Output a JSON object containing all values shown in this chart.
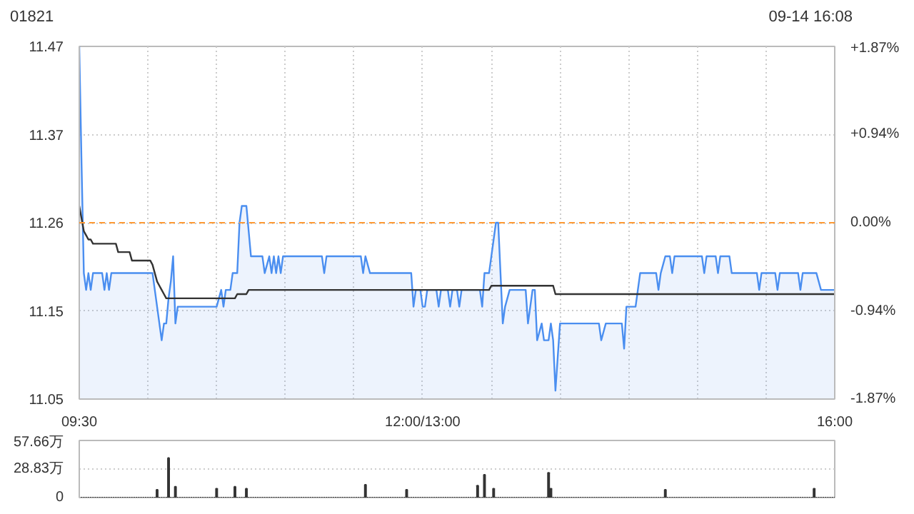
{
  "chart_data": [
    {
      "type": "line",
      "title": "01821",
      "annotations": [
        "09-14 16:08"
      ],
      "categories": [
        "09:30",
        null,
        null,
        null,
        null,
        null,
        null,
        null,
        null,
        null,
        null,
        null,
        null,
        null,
        null,
        null,
        null,
        null,
        null,
        null,
        null,
        null,
        null,
        null,
        null,
        null,
        null,
        null,
        null,
        null,
        null,
        null,
        null,
        null,
        null,
        null,
        null,
        null,
        null,
        null,
        null,
        null,
        null,
        null,
        null,
        null,
        null,
        null,
        null,
        null,
        null,
        null,
        null,
        null,
        null,
        null,
        null,
        null,
        null,
        null,
        null,
        null,
        null,
        null,
        null,
        null,
        null,
        null,
        null,
        null,
        null,
        null,
        null,
        null,
        null,
        null,
        null,
        null,
        null,
        null,
        null,
        null,
        null,
        null,
        null,
        null,
        null,
        null,
        null,
        null,
        null,
        null,
        null,
        null,
        null,
        null,
        null,
        null,
        null,
        null,
        null,
        null,
        null,
        null,
        null,
        null,
        null,
        null,
        null,
        null,
        null,
        null,
        null,
        null,
        null,
        null,
        null,
        null,
        null,
        null,
        null,
        null,
        null,
        null,
        null,
        null,
        null,
        null,
        null,
        null,
        null,
        null,
        null,
        null,
        null,
        null,
        null,
        null,
        null,
        null,
        null,
        null,
        null,
        null,
        null,
        null,
        null,
        null,
        null,
        null,
        "12:00/13:00",
        null,
        null,
        null,
        null,
        null,
        null,
        null,
        null,
        null,
        null,
        null,
        null,
        null,
        null,
        null,
        null,
        null,
        null,
        null,
        null,
        null,
        null,
        null,
        null,
        null,
        null,
        null,
        null,
        null,
        null,
        null,
        null,
        null,
        null,
        null,
        null,
        null,
        null,
        null,
        null,
        null,
        null,
        null,
        null,
        null,
        null,
        null,
        null,
        null,
        null,
        null,
        null,
        null,
        null,
        null,
        null,
        null,
        null,
        null,
        null,
        null,
        null,
        null,
        null,
        null,
        null,
        null,
        null,
        null,
        null,
        null,
        null,
        null,
        null,
        null,
        null,
        null,
        null,
        null,
        null,
        null,
        null,
        null,
        null,
        null,
        null,
        null,
        null,
        null,
        null,
        null,
        null,
        null,
        null,
        null,
        null,
        null,
        null,
        null,
        null,
        null,
        null,
        null,
        null,
        null,
        null,
        null,
        null,
        null,
        null,
        null,
        null,
        null,
        null,
        null,
        null,
        null,
        null,
        null,
        null,
        null,
        null,
        null,
        null,
        null,
        null,
        null,
        null,
        null,
        null,
        null,
        null,
        null,
        null,
        null,
        null,
        null,
        null,
        null,
        null,
        null,
        null,
        null,
        null,
        null,
        null,
        null,
        null,
        null,
        null,
        null,
        null,
        null,
        null,
        null,
        null,
        null,
        null,
        null,
        null,
        null,
        null,
        null,
        null,
        null,
        null,
        null,
        null,
        null,
        null,
        null,
        null,
        null,
        null,
        null,
        null,
        null,
        null,
        null,
        "16:00"
      ],
      "ylim": [
        11.05,
        11.47
      ],
      "yticks": [
        {
          "value": 11.05,
          "label": "11.05"
        },
        {
          "value": 11.155,
          "label": "11.15"
        },
        {
          "value": 11.26,
          "label": "11.26"
        },
        {
          "value": 11.365,
          "label": "11.37"
        },
        {
          "value": 11.47,
          "label": "11.47"
        }
      ],
      "y2lim": [
        -1.87,
        1.87
      ],
      "y2ticks": [
        {
          "value": -1.87,
          "label": "-1.87%"
        },
        {
          "value": -0.94,
          "label": "-0.94%"
        },
        {
          "value": 0,
          "label": "0.00%"
        },
        {
          "value": 0.94,
          "label": "+0.94%"
        },
        {
          "value": 1.87,
          "label": "+1.87%"
        }
      ],
      "grid": true,
      "ref_lines": [
        {
          "axis": "y",
          "value": 11.26,
          "color": "#ff9933",
          "line_style": "dashed"
        }
      ],
      "series": [
        {
          "type": "area",
          "color": "#4a8ef0",
          "values": [
            11.47,
            11.33,
            11.2,
            11.18,
            11.2,
            11.18,
            11.2,
            11.2,
            11.2,
            11.2,
            11.2,
            11.18,
            11.2,
            11.18,
            11.2,
            11.2,
            11.2,
            11.2,
            11.2,
            11.2,
            11.2,
            11.2,
            11.2,
            11.2,
            11.2,
            11.2,
            11.2,
            11.2,
            11.2,
            11.2,
            11.2,
            11.2,
            11.2,
            11.18,
            11.16,
            11.14,
            11.12,
            11.14,
            11.14,
            11.17,
            11.19,
            11.22,
            11.14,
            11.16,
            11.16,
            11.16,
            11.16,
            11.16,
            11.16,
            11.16,
            11.16,
            11.16,
            11.16,
            11.16,
            11.16,
            11.16,
            11.16,
            11.16,
            11.16,
            11.16,
            11.16,
            11.17,
            11.18,
            11.16,
            11.18,
            11.18,
            11.18,
            11.2,
            11.2,
            11.2,
            11.26,
            11.28,
            11.28,
            11.28,
            11.25,
            11.22,
            11.22,
            11.22,
            11.22,
            11.22,
            11.22,
            11.2,
            11.21,
            11.22,
            11.2,
            11.22,
            11.2,
            11.22,
            11.2,
            11.22,
            11.22,
            11.22,
            11.22,
            11.22,
            11.22,
            11.22,
            11.22,
            11.22,
            11.22,
            11.22,
            11.22,
            11.22,
            11.22,
            11.22,
            11.22,
            11.22,
            11.22,
            11.2,
            11.22,
            11.22,
            11.22,
            11.22,
            11.22,
            11.22,
            11.22,
            11.22,
            11.22,
            11.22,
            11.22,
            11.22,
            11.22,
            11.22,
            11.22,
            11.22,
            11.2,
            11.22,
            11.21,
            11.2,
            11.2,
            11.2,
            11.2,
            11.2,
            11.2,
            11.2,
            11.2,
            11.2,
            11.2,
            11.2,
            11.2,
            11.2,
            11.2,
            11.2,
            11.2,
            11.2,
            11.2,
            11.2,
            11.16,
            11.18,
            11.18,
            11.18,
            11.16,
            11.16,
            11.18,
            11.18,
            11.18,
            11.18,
            11.18,
            11.16,
            11.18,
            11.18,
            11.18,
            11.18,
            11.16,
            11.18,
            11.18,
            11.18,
            11.16,
            11.18,
            11.18,
            11.18,
            11.18,
            11.18,
            11.18,
            11.18,
            11.18,
            11.18,
            11.16,
            11.2,
            11.2,
            11.2,
            11.22,
            11.24,
            11.26,
            11.26,
            11.2,
            11.14,
            11.16,
            11.17,
            11.18,
            11.18,
            11.18,
            11.18,
            11.18,
            11.18,
            11.18,
            11.18,
            11.14,
            11.16,
            11.18,
            11.18,
            11.12,
            11.13,
            11.14,
            11.12,
            11.12,
            11.12,
            11.14,
            11.12,
            11.06,
            11.1,
            11.14,
            11.14,
            11.14,
            11.14,
            11.14,
            11.14,
            11.14,
            11.14,
            11.14,
            11.14,
            11.14,
            11.14,
            11.14,
            11.14,
            11.14,
            11.14,
            11.14,
            11.14,
            11.12,
            11.13,
            11.14,
            11.14,
            11.14,
            11.14,
            11.14,
            11.14,
            11.14,
            11.14,
            11.11,
            11.16,
            11.16,
            11.16,
            11.16,
            11.16,
            11.18,
            11.2,
            11.2,
            11.2,
            11.2,
            11.2,
            11.2,
            11.2,
            11.2,
            11.18,
            11.2,
            11.21,
            11.22,
            11.22,
            11.22,
            11.2,
            11.22,
            11.22,
            11.22,
            11.22,
            11.22,
            11.22,
            11.22,
            11.22,
            11.22,
            11.22,
            11.22,
            11.22,
            11.22,
            11.2,
            11.22,
            11.22,
            11.22,
            11.22,
            11.22,
            11.2,
            11.22,
            11.22,
            11.22,
            11.22,
            11.22,
            11.2,
            11.2,
            11.2,
            11.2,
            11.2,
            11.2,
            11.2,
            11.2,
            11.2,
            11.2,
            11.2,
            11.2,
            11.18,
            11.2,
            11.2,
            11.2,
            11.2,
            11.2,
            11.2,
            11.2,
            11.18,
            11.2,
            11.2,
            11.2,
            11.2,
            11.2,
            11.2,
            11.2,
            11.2,
            11.2,
            11.18,
            11.2,
            11.2,
            11.2,
            11.2,
            11.2,
            11.2,
            11.2,
            11.19,
            11.18,
            11.18,
            11.18,
            11.18,
            11.18,
            11.18,
            11.18
          ]
        },
        {
          "type": "line",
          "color": "#333333",
          "values": [
            11.28,
            11.265,
            11.25,
            11.245,
            11.24,
            11.24,
            11.235,
            11.235,
            11.235,
            11.235,
            11.235,
            11.235,
            11.235,
            11.235,
            11.235,
            11.235,
            11.235,
            11.225,
            11.225,
            11.225,
            11.225,
            11.225,
            11.225,
            11.215,
            11.215,
            11.215,
            11.215,
            11.215,
            11.215,
            11.215,
            11.215,
            11.215,
            11.21,
            11.2,
            11.19,
            11.185,
            11.18,
            11.175,
            11.17,
            11.17,
            11.17,
            11.17,
            11.17,
            11.17,
            11.17,
            11.17,
            11.17,
            11.17,
            11.17,
            11.17,
            11.17,
            11.17,
            11.17,
            11.17,
            11.17,
            11.17,
            11.17,
            11.17,
            11.17,
            11.17,
            11.17,
            11.17,
            11.17,
            11.17,
            11.17,
            11.17,
            11.17,
            11.17,
            11.17,
            11.175,
            11.175,
            11.175,
            11.175,
            11.175,
            11.18,
            11.18,
            11.18,
            11.18,
            11.18,
            11.18,
            11.18,
            11.18,
            11.18,
            11.18,
            11.18,
            11.18,
            11.18,
            11.18,
            11.18,
            11.18,
            11.18,
            11.18,
            11.18,
            11.18,
            11.18,
            11.18,
            11.18,
            11.18,
            11.18,
            11.18,
            11.18,
            11.18,
            11.18,
            11.18,
            11.18,
            11.18,
            11.18,
            11.18,
            11.18,
            11.18,
            11.18,
            11.18,
            11.18,
            11.18,
            11.18,
            11.18,
            11.18,
            11.18,
            11.18,
            11.18,
            11.18,
            11.18,
            11.18,
            11.18,
            11.18,
            11.18,
            11.18,
            11.18,
            11.18,
            11.18,
            11.18,
            11.18,
            11.18,
            11.18,
            11.18,
            11.18,
            11.18,
            11.18,
            11.18,
            11.18,
            11.18,
            11.18,
            11.18,
            11.18,
            11.18,
            11.18,
            11.18,
            11.18,
            11.18,
            11.18,
            11.18,
            11.18,
            11.18,
            11.18,
            11.18,
            11.18,
            11.18,
            11.18,
            11.18,
            11.18,
            11.18,
            11.18,
            11.18,
            11.18,
            11.18,
            11.18,
            11.18,
            11.18,
            11.18,
            11.18,
            11.18,
            11.18,
            11.18,
            11.18,
            11.18,
            11.18,
            11.18,
            11.18,
            11.18,
            11.18,
            11.185,
            11.185,
            11.185,
            11.185,
            11.185,
            11.185,
            11.185,
            11.185,
            11.185,
            11.185,
            11.185,
            11.185,
            11.185,
            11.185,
            11.185,
            11.185,
            11.185,
            11.185,
            11.185,
            11.185,
            11.185,
            11.185,
            11.185,
            11.185,
            11.185,
            11.185,
            11.185,
            11.185,
            11.175,
            11.175,
            11.175,
            11.175,
            11.175,
            11.175,
            11.175,
            11.175,
            11.175,
            11.175,
            11.175,
            11.175,
            11.175,
            11.175,
            11.175,
            11.175,
            11.175,
            11.175,
            11.175,
            11.175,
            11.175,
            11.175,
            11.175,
            11.175,
            11.175,
            11.175,
            11.175,
            11.175,
            11.175,
            11.175,
            11.175,
            11.175,
            11.175,
            11.175,
            11.175,
            11.175,
            11.175,
            11.175,
            11.175,
            11.175,
            11.175,
            11.175,
            11.175,
            11.175,
            11.175,
            11.175,
            11.175,
            11.175,
            11.175,
            11.175,
            11.175,
            11.175,
            11.175,
            11.175,
            11.175,
            11.175,
            11.175,
            11.175,
            11.175,
            11.175,
            11.175,
            11.175,
            11.175,
            11.175,
            11.175,
            11.175,
            11.175,
            11.175,
            11.175,
            11.175,
            11.175,
            11.175,
            11.175,
            11.175,
            11.175,
            11.175,
            11.175,
            11.175,
            11.175,
            11.175,
            11.175,
            11.175,
            11.175,
            11.175,
            11.175,
            11.175,
            11.175,
            11.175,
            11.175,
            11.175,
            11.175,
            11.175,
            11.175,
            11.175,
            11.175,
            11.175,
            11.175,
            11.175,
            11.175,
            11.175,
            11.175,
            11.175,
            11.175,
            11.175,
            11.175,
            11.175,
            11.175,
            11.175,
            11.175,
            11.175,
            11.175,
            11.175,
            11.175,
            11.175,
            11.175,
            11.175,
            11.175,
            11.175,
            11.175,
            11.175,
            11.175,
            11.175,
            11.175
          ]
        }
      ]
    },
    {
      "type": "bar",
      "ylim": [
        0,
        57.66
      ],
      "yticks": [
        0,
        {
          "value": 28.83,
          "label": "28.83万"
        },
        {
          "value": 57.66,
          "label": "57.66万"
        }
      ],
      "grid": "y",
      "tick_labels": "y",
      "color": "#333333",
      "categories": [
        null,
        null,
        null,
        null,
        null,
        null,
        null,
        null,
        null,
        null,
        null,
        null,
        null,
        null,
        null,
        null,
        null,
        null,
        null,
        null,
        null,
        null,
        null,
        null,
        null,
        null,
        null,
        null,
        null,
        null,
        null,
        null,
        null,
        null,
        null,
        null,
        null,
        null,
        null,
        null,
        null,
        null,
        null,
        null,
        null,
        null,
        null,
        null,
        null,
        null,
        null,
        null,
        null,
        null,
        null,
        null,
        null,
        null,
        null,
        null,
        null,
        null,
        null,
        null,
        null,
        null,
        null,
        null,
        null,
        null,
        null,
        null,
        null,
        null,
        null,
        null,
        null,
        null,
        null,
        null,
        null,
        null,
        null,
        null,
        null,
        null,
        null,
        null,
        null,
        null,
        null,
        null,
        null,
        null,
        null,
        null,
        null,
        null,
        null,
        null,
        null,
        null,
        null,
        null,
        null,
        null,
        null,
        null,
        null,
        null,
        null,
        null,
        null,
        null,
        null,
        null,
        null,
        null,
        null,
        null,
        null,
        null,
        null,
        null,
        null,
        null,
        null,
        null,
        null,
        null,
        null,
        null,
        null,
        null,
        null,
        null,
        null,
        null,
        null,
        null,
        null,
        null,
        null,
        null,
        null,
        null,
        null,
        null,
        null,
        null,
        null,
        null,
        null,
        null,
        null,
        null,
        null,
        null,
        null,
        null,
        null,
        null,
        null,
        null,
        null,
        null,
        null,
        null,
        null,
        null,
        null,
        null,
        null,
        null,
        null,
        null,
        null,
        null,
        null,
        null,
        null,
        null,
        null,
        null,
        null,
        null,
        null,
        null,
        null,
        null,
        null,
        null,
        null,
        null,
        null,
        null,
        null,
        null,
        null,
        null,
        null,
        null,
        null,
        null,
        null,
        null,
        null,
        null,
        null,
        null,
        null,
        null,
        null,
        null,
        null,
        null,
        null,
        null,
        null,
        null,
        null,
        null,
        null,
        null,
        null,
        null,
        null,
        null,
        null,
        null,
        null,
        null,
        null,
        null,
        null,
        null,
        null,
        null,
        null,
        null,
        null,
        null,
        null,
        null,
        null,
        null,
        null,
        null,
        null,
        null,
        null,
        null,
        null,
        null,
        null,
        null,
        null,
        null,
        null,
        null,
        null,
        null,
        null,
        null,
        null,
        null,
        null,
        null,
        null,
        null,
        null,
        null,
        null,
        null,
        null,
        null,
        null,
        null,
        null,
        null,
        null,
        null,
        null,
        null,
        null,
        null,
        null,
        null,
        null,
        null,
        null,
        null,
        null,
        null,
        null,
        null,
        null,
        null,
        null,
        null,
        null,
        null,
        null,
        null,
        null,
        null,
        null,
        null,
        null,
        null,
        null,
        null,
        null,
        null,
        null,
        null,
        null,
        null,
        null,
        null,
        null,
        null,
        null,
        null,
        null,
        null,
        null,
        null,
        null,
        null,
        null
      ],
      "values": [
        0,
        0,
        0,
        0,
        0,
        0,
        0,
        0,
        0,
        0,
        0,
        0,
        0,
        0,
        0,
        0,
        0,
        0,
        0,
        0,
        0,
        0,
        0,
        0,
        0,
        0,
        0,
        0,
        0,
        0,
        0,
        0,
        0,
        0,
        8,
        0,
        0,
        0,
        0,
        40,
        0,
        0,
        11,
        0,
        0,
        0,
        0,
        0,
        0,
        0,
        0,
        0,
        0,
        0,
        0,
        0,
        0,
        0,
        0,
        0,
        9,
        0,
        0,
        0,
        0,
        0,
        0,
        0,
        11,
        0,
        0,
        0,
        0,
        9,
        0,
        0,
        0,
        0,
        0,
        0,
        0,
        0,
        0,
        0,
        0,
        0,
        0,
        0,
        0,
        0,
        0,
        0,
        0,
        0,
        0,
        0,
        0,
        0,
        0,
        0,
        0,
        0,
        0,
        0,
        0,
        0,
        0,
        0,
        0,
        0,
        0,
        0,
        0,
        0,
        0,
        0,
        0,
        0,
        0,
        0,
        0,
        0,
        0,
        0,
        0,
        13,
        0,
        0,
        0,
        0,
        0,
        0,
        0,
        0,
        0,
        0,
        0,
        0,
        0,
        0,
        0,
        0,
        0,
        8,
        0,
        0,
        0,
        0,
        0,
        0,
        0,
        0,
        0,
        0,
        0,
        0,
        0,
        0,
        0,
        0,
        0,
        0,
        0,
        0,
        0,
        0,
        0,
        0,
        0,
        0,
        0,
        0,
        0,
        0,
        12,
        0,
        0,
        23,
        0,
        0,
        0,
        9,
        0,
        0,
        0,
        0,
        0,
        0,
        0,
        0,
        0,
        0,
        0,
        0,
        0,
        0,
        0,
        0,
        0,
        0,
        0,
        0,
        0,
        0,
        0,
        25,
        9,
        0,
        0,
        0,
        0,
        0,
        0,
        0,
        0,
        0,
        0,
        0,
        0,
        0,
        0,
        0,
        0,
        0,
        0,
        0,
        0,
        0,
        0,
        0,
        0,
        0,
        0,
        0,
        0,
        0,
        0,
        0,
        0,
        0,
        0,
        0,
        0,
        0,
        0,
        0,
        0,
        0,
        0,
        0,
        0,
        0,
        0,
        0,
        0,
        0,
        8,
        0,
        0,
        0,
        0,
        0,
        0,
        0,
        0,
        0,
        0,
        0,
        0,
        0,
        0,
        0,
        0,
        0,
        0,
        0,
        0,
        0,
        0,
        0,
        0,
        0,
        0,
        0,
        0,
        0,
        0,
        0,
        0,
        0,
        0,
        0,
        0,
        0,
        0,
        0,
        0,
        0,
        0,
        0,
        0,
        0,
        0,
        0,
        0,
        0,
        0,
        0,
        0,
        0,
        0,
        0,
        0,
        0,
        0,
        0,
        0,
        0,
        0,
        0,
        0,
        9,
        0,
        0,
        0,
        0,
        0,
        0,
        0,
        0,
        0
      ]
    }
  ]
}
